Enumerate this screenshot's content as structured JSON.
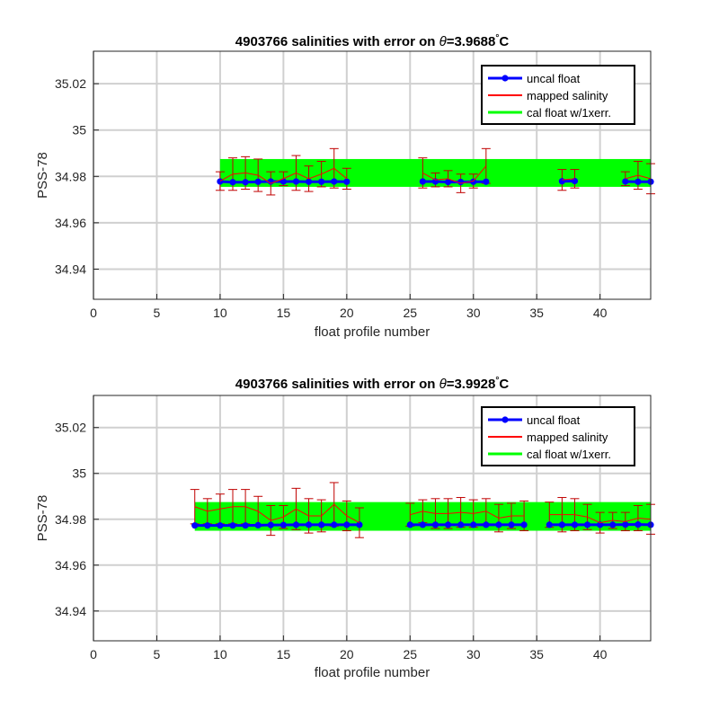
{
  "chart_data": [
    {
      "type": "line",
      "title_prefix": "4903766 salinities with error on ",
      "theta_symbol": "θ",
      "title_value": "=3.9688",
      "title_degree": "°",
      "title_unit": "C",
      "xlabel": "float profile number",
      "ylabel": "PSS-78",
      "xlim": [
        0,
        44
      ],
      "ylim": [
        34.927,
        35.034
      ],
      "xticks": [
        "0",
        "5",
        "10",
        "15",
        "20",
        "25",
        "30",
        "35",
        "40"
      ],
      "yticks": [
        "34.94",
        "34.96",
        "34.98",
        "35",
        "35.02"
      ],
      "grid": true,
      "legend_position": "top-right",
      "legend": [
        "uncal float",
        "mapped salinity",
        "cal float w/1xerr."
      ],
      "colors": {
        "uncal": "#0000ff",
        "mapped": "#ff0000",
        "cal": "#00ff00",
        "errorbar": "#c00000"
      },
      "cal_band": {
        "lower": 34.9755,
        "upper": 34.9875
      },
      "uncal_segments": [
        {
          "x": [
            10,
            11,
            12,
            13,
            14,
            15,
            16,
            17,
            18,
            19,
            20
          ],
          "y": [
            34.9778,
            34.9775,
            34.9775,
            34.9777,
            34.9778,
            34.9778,
            34.9778,
            34.9777,
            34.9777,
            34.9778,
            34.9777
          ]
        },
        {
          "x": [
            26,
            27,
            28,
            29,
            30,
            31
          ],
          "y": [
            34.9778,
            34.9778,
            34.9776,
            34.9776,
            34.9777,
            34.9777
          ]
        },
        {
          "x": [
            37,
            38
          ],
          "y": [
            34.9779,
            34.978
          ]
        },
        {
          "x": [
            42,
            43,
            44
          ],
          "y": [
            34.9778,
            34.9777,
            34.9777
          ]
        }
      ],
      "mapped_segments": [
        {
          "x": [
            10,
            11,
            12,
            13,
            14,
            15,
            16,
            17,
            18,
            19,
            20
          ],
          "y": [
            34.978,
            34.981,
            34.9815,
            34.9805,
            34.977,
            34.979,
            34.9815,
            34.979,
            34.981,
            34.9835,
            34.979
          ]
        },
        {
          "x": [
            26,
            27,
            28,
            29,
            30,
            31
          ],
          "y": [
            34.9815,
            34.9785,
            34.979,
            34.977,
            34.978,
            34.9845
          ]
        },
        {
          "x": [
            37,
            38
          ],
          "y": [
            34.9785,
            34.979
          ]
        },
        {
          "x": [
            42,
            43,
            44
          ],
          "y": [
            34.979,
            34.9805,
            34.979
          ]
        }
      ],
      "mapped_error": [
        {
          "x": [
            10,
            11,
            12,
            13,
            14,
            15,
            16,
            17,
            18,
            19,
            20
          ],
          "e": [
            0.004,
            0.007,
            0.007,
            0.007,
            0.005,
            0.003,
            0.0075,
            0.0055,
            0.0055,
            0.0085,
            0.0045
          ]
        },
        {
          "x": [
            26,
            27,
            28,
            29,
            30,
            31
          ],
          "e": [
            0.0065,
            0.003,
            0.0035,
            0.004,
            0.003,
            0.0075
          ]
        },
        {
          "x": [
            37,
            38
          ],
          "e": [
            0.0045,
            0.004
          ]
        },
        {
          "x": [
            42,
            43,
            44
          ],
          "e": [
            0.003,
            0.006,
            0.0065
          ]
        }
      ]
    },
    {
      "type": "line",
      "title_prefix": "4903766 salinities with error on ",
      "theta_symbol": "θ",
      "title_value": "=3.9928",
      "title_degree": "°",
      "title_unit": "C",
      "xlabel": "float profile number",
      "ylabel": "PSS-78",
      "xlim": [
        0,
        44
      ],
      "ylim": [
        34.927,
        35.034
      ],
      "xticks": [
        "0",
        "5",
        "10",
        "15",
        "20",
        "25",
        "30",
        "35",
        "40"
      ],
      "yticks": [
        "34.94",
        "34.96",
        "34.98",
        "35",
        "35.02"
      ],
      "grid": true,
      "legend_position": "top-right",
      "legend": [
        "uncal float",
        "mapped salinity",
        "cal float w/1xerr."
      ],
      "colors": {
        "uncal": "#0000ff",
        "mapped": "#ff0000",
        "cal": "#00ff00",
        "errorbar": "#c00000"
      },
      "cal_band": {
        "lower": 34.975,
        "upper": 34.9875
      },
      "uncal_segments": [
        {
          "x": [
            8,
            9,
            10,
            11,
            12,
            13,
            14,
            15,
            16,
            17,
            18,
            19,
            20,
            21
          ],
          "y": [
            34.9773,
            34.9773,
            34.9773,
            34.9773,
            34.9773,
            34.9774,
            34.9775,
            34.9775,
            34.9776,
            34.9776,
            34.9776,
            34.9776,
            34.9776,
            34.9776
          ]
        },
        {
          "x": [
            25,
            26,
            27,
            28,
            29,
            30,
            31,
            32,
            33,
            34
          ],
          "y": [
            34.9776,
            34.9776,
            34.9776,
            34.9776,
            34.9776,
            34.9776,
            34.9776,
            34.9776,
            34.9776,
            34.9776
          ]
        },
        {
          "x": [
            36,
            37,
            38,
            39,
            40,
            41,
            42,
            43,
            44
          ],
          "y": [
            34.9776,
            34.9776,
            34.9776,
            34.9776,
            34.9776,
            34.9776,
            34.9777,
            34.9777,
            34.9776
          ]
        }
      ],
      "mapped_segments": [
        {
          "x": [
            8,
            9,
            10,
            11,
            12,
            13,
            14,
            15,
            16,
            17,
            18,
            19,
            20,
            21
          ],
          "y": [
            34.9855,
            34.9835,
            34.9845,
            34.9855,
            34.9855,
            34.9835,
            34.9795,
            34.981,
            34.9845,
            34.9815,
            34.9815,
            34.9865,
            34.9815,
            34.9785
          ]
        },
        {
          "x": [
            25,
            26,
            27,
            28,
            29,
            30,
            31,
            32,
            33,
            34
          ],
          "y": [
            34.982,
            34.9835,
            34.9825,
            34.9825,
            34.983,
            34.9825,
            34.9835,
            34.9805,
            34.9815,
            34.9815
          ]
        },
        {
          "x": [
            36,
            37,
            38,
            39,
            40,
            41,
            42,
            43,
            44
          ],
          "y": [
            34.982,
            34.982,
            34.982,
            34.981,
            34.9785,
            34.9795,
            34.979,
            34.9805,
            34.98
          ]
        }
      ],
      "mapped_error": [
        {
          "x": [
            8,
            9,
            10,
            11,
            12,
            13,
            14,
            15,
            16,
            17,
            18,
            19,
            20,
            21
          ],
          "e": [
            0.0075,
            0.0055,
            0.0065,
            0.0075,
            0.0075,
            0.0065,
            0.0065,
            0.005,
            0.009,
            0.0075,
            0.007,
            0.0095,
            0.0065,
            0.0065
          ]
        },
        {
          "x": [
            25,
            26,
            27,
            28,
            29,
            30,
            31,
            32,
            33,
            34
          ],
          "e": [
            0.005,
            0.005,
            0.0065,
            0.0065,
            0.0065,
            0.006,
            0.0055,
            0.006,
            0.0055,
            0.0065
          ]
        },
        {
          "x": [
            36,
            37,
            38,
            39,
            40,
            41,
            42,
            43,
            44
          ],
          "e": [
            0.0055,
            0.0075,
            0.007,
            0.0055,
            0.0045,
            0.0035,
            0.004,
            0.0055,
            0.0065
          ]
        }
      ]
    }
  ]
}
